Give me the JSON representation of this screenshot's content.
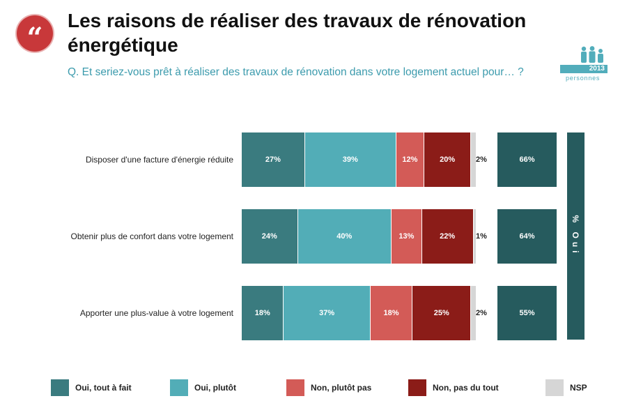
{
  "header": {
    "quote_glyph": "“",
    "title": "Les raisons de réaliser des travaux de rénovation énergétique",
    "question": "Q. Et seriez-vous prêt à réaliser des travaux de rénovation dans votre logement actuel pour… ?"
  },
  "brand": {
    "number": "2013",
    "word": "personnes"
  },
  "colors": {
    "oui_tout_a_fait": "#3a7b7f",
    "oui_plutot": "#52adb7",
    "non_plutot_pas": "#d35b57",
    "non_pas_du_tout": "#8b1c18",
    "nsp": "#d6d6d6",
    "oui_total": "#265b5e"
  },
  "oui_column_label": "% Oui",
  "chart_data": {
    "type": "bar",
    "orientation": "horizontal",
    "stacked": true,
    "categories": [
      "Disposer d'une facture d'énergie réduite",
      "Obtenir plus de confort dans votre logement",
      "Apporter une plus-value à votre logement"
    ],
    "series": [
      {
        "name": "Oui, tout à fait",
        "values": [
          27,
          24,
          18
        ],
        "labels": [
          "27%",
          "24%",
          "18%"
        ]
      },
      {
        "name": "Oui, plutôt",
        "values": [
          39,
          40,
          37
        ],
        "labels": [
          "39%",
          "40%",
          "37%"
        ]
      },
      {
        "name": "Non, plutôt pas",
        "values": [
          12,
          13,
          18
        ],
        "labels": [
          "12%",
          "13%",
          "18%"
        ]
      },
      {
        "name": "Non, pas du tout",
        "values": [
          20,
          22,
          25
        ],
        "labels": [
          "20%",
          "22%",
          "25%"
        ]
      },
      {
        "name": "NSP",
        "values": [
          2,
          1,
          2
        ],
        "labels": [
          "2%",
          "1%",
          "2%"
        ]
      }
    ],
    "oui_total": {
      "values": [
        66,
        64,
        55
      ],
      "labels": [
        "66%",
        "64%",
        "55%"
      ]
    },
    "legend_position": "bottom"
  }
}
